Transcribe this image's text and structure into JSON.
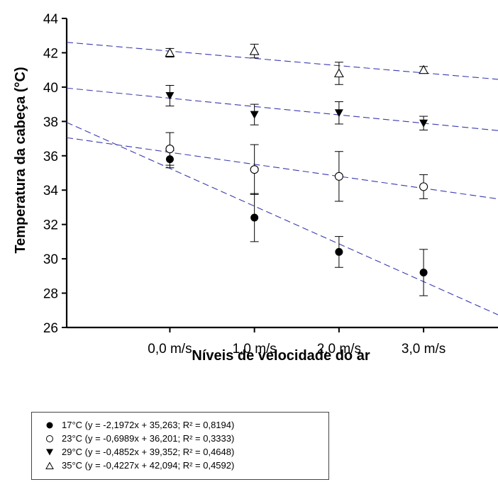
{
  "chart_data": {
    "type": "scatter",
    "xlabel": "Níveis de velocidade do ar",
    "ylabel": "Temperatura da cabeça (°C)",
    "categories": [
      "0,0 m/s",
      "1,0 m/s",
      "2,0 m/s",
      "3,0 m/s"
    ],
    "x": [
      0,
      1,
      2,
      3
    ],
    "ylim": [
      26,
      44
    ],
    "yticks": [
      "26",
      "28",
      "30",
      "32",
      "34",
      "36",
      "38",
      "40",
      "42",
      "44"
    ],
    "grid": false,
    "legend_position": "bottom-left",
    "trendline_color": "#3a3ab0",
    "series": [
      {
        "name": "17°C (y = -2,1972x + 35,263; R² = 0,8194)",
        "marker": "filled-circle",
        "values": [
          35.8,
          32.4,
          30.4,
          29.2
        ],
        "error": [
          0.5,
          1.4,
          0.9,
          1.35
        ],
        "trend": {
          "slope": -2.1972,
          "intercept": 35.263
        }
      },
      {
        "name": "23°C (y = -0,6989x + 36,201; R² = 0,3333)",
        "marker": "open-circle",
        "values": [
          36.4,
          35.2,
          34.8,
          34.2
        ],
        "error": [
          0.95,
          1.45,
          1.45,
          0.7
        ],
        "trend": {
          "slope": -0.6989,
          "intercept": 36.201
        }
      },
      {
        "name": "29°C (y = -0,4852x + 39,352; R² = 0,4648)",
        "marker": "filled-triangle-down",
        "values": [
          39.5,
          38.4,
          38.5,
          37.9
        ],
        "error": [
          0.6,
          0.6,
          0.65,
          0.4
        ],
        "trend": {
          "slope": -0.4852,
          "intercept": 39.352
        }
      },
      {
        "name": "35°C (y = -0,4227x + 42,094; R² = 0,4592)",
        "marker": "open-triangle-up",
        "values": [
          42.0,
          42.1,
          40.8,
          41.0
        ],
        "error": [
          0.25,
          0.4,
          0.65,
          0.2
        ],
        "trend": {
          "slope": -0.4227,
          "intercept": 42.094
        }
      }
    ]
  }
}
